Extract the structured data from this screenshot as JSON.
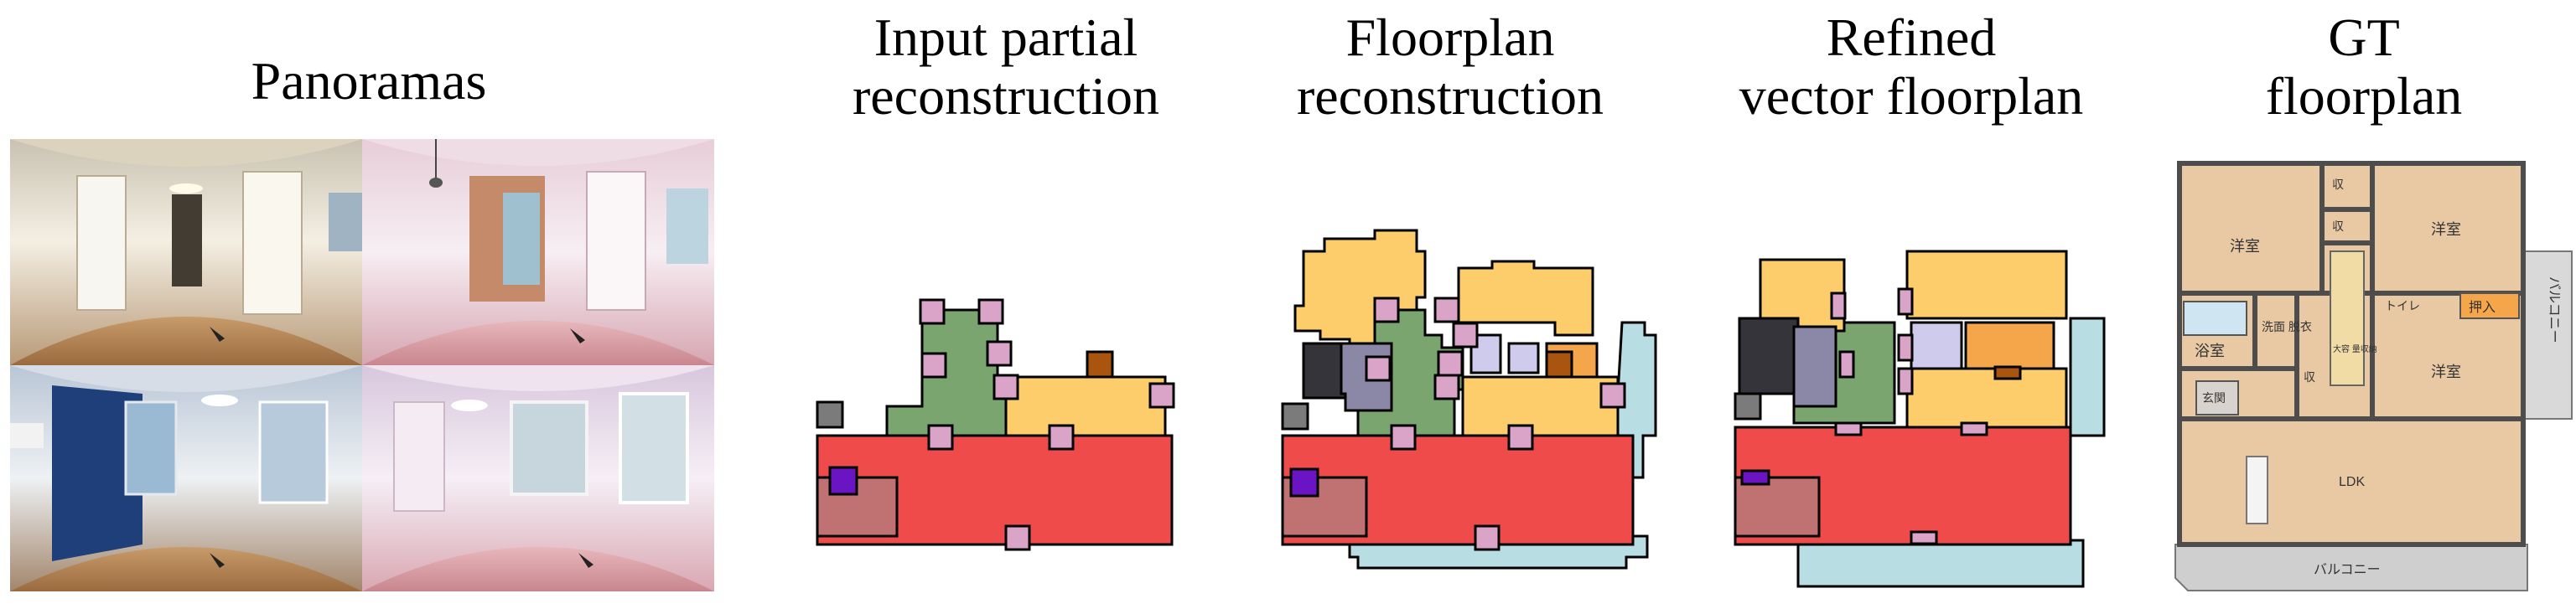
{
  "columns": {
    "panoramas": [
      "Panoramas"
    ],
    "input": [
      "Input partial",
      "reconstruction"
    ],
    "floorplan": [
      "Floorplan",
      "reconstruction"
    ],
    "refined": [
      "Refined",
      "vector floorplan"
    ],
    "gt": [
      "GT",
      "floorplan"
    ]
  },
  "gt_labels": {
    "room_tl": "洋室",
    "room_tr": "洋室",
    "closet_top_a": "収",
    "closet_top_b": "収",
    "bath": "浴室",
    "washroom": "洗面\n脱衣",
    "toilet": "トイレ",
    "storage": "収",
    "storage2": "大容\n量収納",
    "oshiire": "押入",
    "room_mid": "洋室",
    "entrance": "玄関",
    "ldk": "LDK",
    "balcony_right": "バルコニー",
    "balcony_bottom": "バルコニー"
  },
  "colors": {
    "living_red": "#ef4b4b",
    "hall_green": "#7aa56f",
    "bedroom_yellow": "#fdcd6b",
    "door_pink": "#d9a4c8",
    "balcony_cyan": "#b8dde3",
    "closet_gray": "#8b87a6",
    "dark": "#34343a",
    "entrance_rose": "#c07171",
    "window_purple": "#6a14c4",
    "brown": "#a95510",
    "lavender": "#cfcbed",
    "orange": "#f6a64a",
    "gt_floor": "#e9c9a4",
    "gt_wall": "#4d4d4d"
  }
}
